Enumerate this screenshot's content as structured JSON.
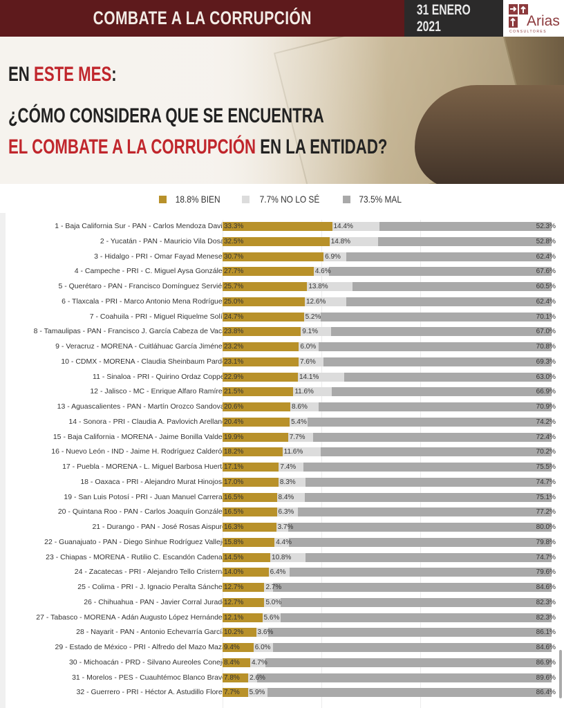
{
  "header": {
    "title": "COMBATE A LA CORRUPCIÓN",
    "date": "31 ENERO 2021",
    "logo_name": "Arias",
    "logo_sub": "CONSULTORES"
  },
  "hero": {
    "line1_a": "EN ",
    "line1_b": "ESTE MES",
    ":": ":",
    "line1_c": ":",
    "line2": "¿CÓMO CONSIDERA QUE SE ENCUENTRA",
    "line3_a": "EL COMBATE A LA CORRUPCIÓN",
    "line3_b": " EN LA ENTIDAD?"
  },
  "colors": {
    "bien": "#b8912a",
    "no_se": "#dcdcdc",
    "mal": "#a9a9a9"
  },
  "chart_data": {
    "type": "bar",
    "stacked": true,
    "orientation": "horizontal",
    "xlim": [
      0,
      100
    ],
    "legend": [
      "18.8% BIEN",
      "7.7% NO LO SÉ",
      "73.5% MAL"
    ],
    "legend_position": "top",
    "series_names": [
      "BIEN",
      "NO LO SÉ",
      "MAL"
    ],
    "categories": [
      "1 - Baja California Sur - PAN  - Carlos Mendoza Davis",
      "2 - Yucatán - PAN - Mauricio Vila Dosal",
      "3 - Hidalgo - PRI - Omar Fayad Meneses",
      "4 - Campeche - PRI - C. Miguel Aysa González",
      "5 - Querétaro - PAN - Francisco Domínguez Servién",
      "6 - Tlaxcala - PRI - Marco Antonio Mena Rodríguez",
      "7 - Coahuila - PRI - Miguel Riquelme Solís",
      "8 - Tamaulipas - PAN - Francisco J. García Cabeza de Vaca",
      "9 - Veracruz - MORENA - Cuitláhuac García Jiménez",
      "10 - CDMX - MORENA - Claudia Sheinbaum Pardo",
      "11 - Sinaloa - PRI - Quirino Ordaz Coppel",
      "12 - Jalisco - MC - Enrique Alfaro Ramírez",
      "13 - Aguascalientes - PAN - Martín Orozco Sandoval",
      "14 - Sonora - PRI - Claudia A. Pavlovich Arellano",
      "15 - Baja California - MORENA - Jaime Bonilla Valdez",
      "16 - Nuevo León - IND - Jaime H. Rodríguez Calderón",
      "17 - Puebla - MORENA - L. Miguel Barbosa Huerta",
      "18 - Oaxaca - PRI - Alejandro Murat Hinojosa",
      "19 - San Luis Potosí - PRI - Juan Manuel Carreras",
      "20 - Quintana Roo - PAN - Carlos Joaquín González",
      "21 - Durango - PAN - José Rosas Aispuro",
      "22 - Guanajuato - PAN - Diego Sinhue Rodríguez Vallejo",
      "23 - Chiapas - MORENA - Rutilio C. Escandón Cadenas",
      "24 - Zacatecas - PRI - Alejandro Tello Cristerna",
      "25 - Colima - PRI - J. Ignacio Peralta Sánchez",
      "26 - Chihuahua - PAN - Javier Corral Jurado",
      "27 - Tabasco - MORENA - Adán Augusto López Hernández",
      "28 - Nayarit - PAN - Antonio Echevarría García",
      "29 - Estado de México - PRI - Alfredo del Mazo Maza",
      "30 - Michoacán - PRD - Silvano Aureoles Conejo",
      "31 - Morelos - PES - Cuauhtémoc Blanco Bravo",
      "32 - Guerrero - PRI - Héctor A. Astudillo Flores"
    ],
    "bien": [
      33.3,
      32.5,
      30.7,
      27.7,
      25.7,
      25.0,
      24.7,
      23.8,
      23.2,
      23.1,
      22.9,
      21.5,
      20.6,
      20.4,
      19.9,
      18.2,
      17.1,
      17.0,
      16.5,
      16.5,
      16.3,
      15.8,
      14.5,
      14.0,
      12.7,
      12.7,
      12.1,
      10.2,
      9.4,
      8.4,
      7.8,
      7.7
    ],
    "no_se": [
      14.4,
      14.8,
      6.9,
      4.6,
      13.8,
      12.6,
      5.2,
      9.1,
      6.0,
      7.6,
      14.1,
      11.6,
      8.6,
      5.4,
      7.7,
      11.6,
      7.4,
      8.3,
      8.4,
      6.3,
      3.7,
      4.4,
      10.8,
      6.4,
      2.7,
      5.0,
      5.6,
      3.6,
      6.0,
      4.7,
      2.6,
      5.9
    ],
    "mal": [
      52.3,
      52.8,
      62.4,
      67.6,
      60.5,
      62.4,
      70.1,
      67.0,
      70.8,
      69.3,
      63.0,
      66.9,
      70.9,
      74.2,
      72.4,
      70.2,
      75.5,
      74.7,
      75.1,
      77.2,
      80.0,
      79.8,
      74.7,
      79.6,
      84.6,
      82.3,
      82.3,
      86.1,
      84.6,
      86.9,
      89.6,
      86.4
    ]
  }
}
